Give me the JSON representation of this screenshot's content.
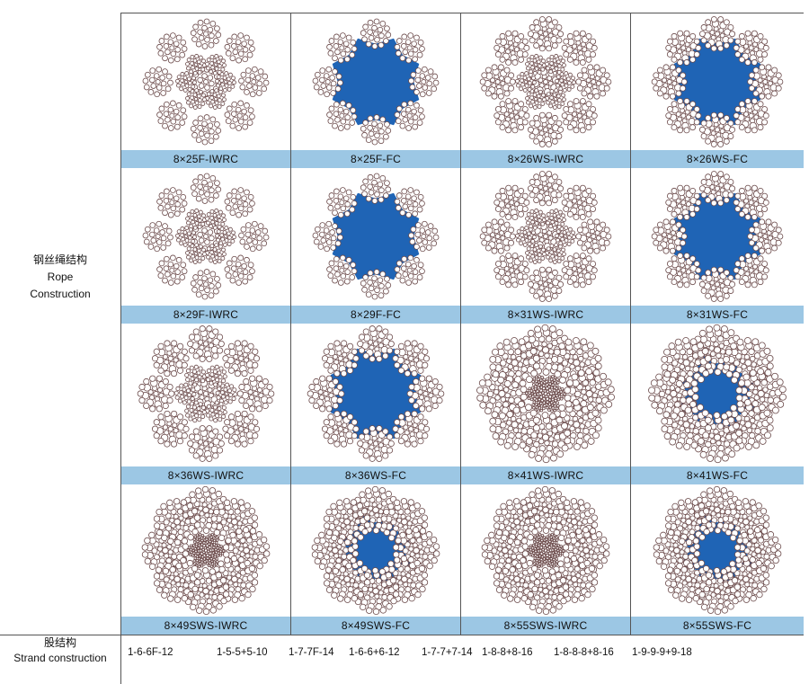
{
  "left_label": {
    "zh": "钢丝绳结构",
    "en_line1": "Rope",
    "en_line2": "Construction"
  },
  "strand_label": {
    "zh": "股结构",
    "en": "Strand construction"
  },
  "core_color": "#1f64b5",
  "label_bar_color": "#9cc7e4",
  "wire_color": "#6b4a4a",
  "ropes": [
    {
      "label": "8×25F-IWRC",
      "core": "IWRC",
      "pattern": "filler"
    },
    {
      "label": "8×25F-FC",
      "core": "FC",
      "pattern": "filler"
    },
    {
      "label": "8×26WS-IWRC",
      "core": "IWRC",
      "pattern": "ws"
    },
    {
      "label": "8×26WS-FC",
      "core": "FC",
      "pattern": "ws"
    },
    {
      "label": "8×29F-IWRC",
      "core": "IWRC",
      "pattern": "filler"
    },
    {
      "label": "8×29F-FC",
      "core": "FC",
      "pattern": "filler"
    },
    {
      "label": "8×31WS-IWRC",
      "core": "IWRC",
      "pattern": "ws"
    },
    {
      "label": "8×31WS-FC",
      "core": "FC",
      "pattern": "ws"
    },
    {
      "label": "8×36WS-IWRC",
      "core": "IWRC",
      "pattern": "ws"
    },
    {
      "label": "8×36WS-FC",
      "core": "FC",
      "pattern": "ws"
    },
    {
      "label": "8×41WS-IWRC",
      "core": "IWRC",
      "pattern": "dense"
    },
    {
      "label": "8×41WS-FC",
      "core": "FC",
      "pattern": "dense"
    },
    {
      "label": "8×49SWS-IWRC",
      "core": "IWRC",
      "pattern": "dense"
    },
    {
      "label": "8×49SWS-FC",
      "core": "FC",
      "pattern": "dense"
    },
    {
      "label": "8×55SWS-IWRC",
      "core": "IWRC",
      "pattern": "dense"
    },
    {
      "label": "8×55SWS-FC",
      "core": "FC",
      "pattern": "dense"
    }
  ],
  "strands": [
    "1-6-6F-12",
    "1-5-5+5-10",
    "1-7-7F-14",
    "1-6-6+6-12",
    "1-7-7+7-14",
    "1-8-8+8-16",
    "1-8-8-8+8-16",
    "1-9-9-9+9-18"
  ]
}
